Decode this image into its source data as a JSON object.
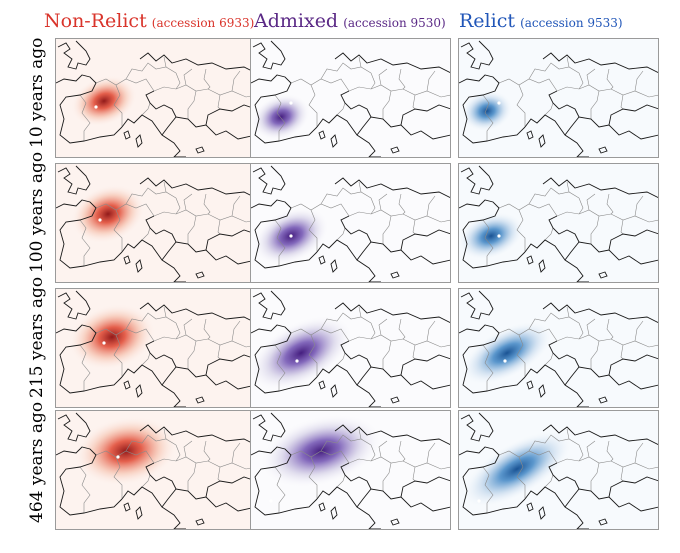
{
  "columns": [
    {
      "name": "Non-Relict",
      "accession": "(accession 6933)",
      "color": "#d9342b"
    },
    {
      "name": "Admixed",
      "accession": "(accession 9530)",
      "color": "#5b2a86"
    },
    {
      "name": "Relict",
      "accession": "(accession 9533)",
      "color": "#2156b8"
    }
  ],
  "rows": [
    {
      "label": "10 years ago"
    },
    {
      "label": "100 years ago"
    },
    {
      "label": "215 years ago"
    },
    {
      "label": "464 years ago"
    }
  ],
  "map_region": "Europe"
}
